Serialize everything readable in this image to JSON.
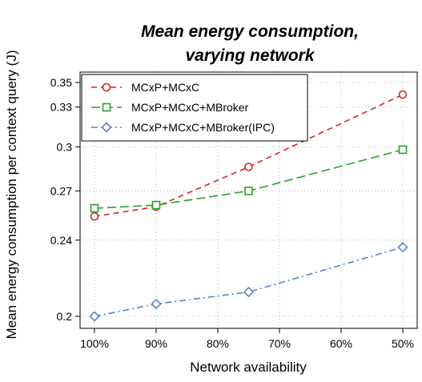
{
  "chart_data": {
    "type": "line",
    "title": "Mean energy consumption, varying network",
    "title_lines": [
      "Mean energy consumption,",
      "varying network"
    ],
    "xlabel": "Network availability",
    "ylabel": "Mean energy consumption per context query (J)",
    "x_ticks": [
      100,
      90,
      80,
      70,
      60,
      50
    ],
    "x_tick_labels": [
      "100%",
      "90%",
      "80%",
      "70%",
      "60%",
      "50%"
    ],
    "xlim": [
      100,
      50
    ],
    "x_reversed": true,
    "y_ticks": [
      0.2,
      0.24,
      0.27,
      0.3,
      0.33,
      0.35
    ],
    "y_tick_labels": [
      "0.2",
      "0.24",
      "0.27",
      "0.3",
      "0.33",
      "0.35"
    ],
    "ylim": [
      0.2,
      0.35
    ],
    "y_scale": "log",
    "grid": true,
    "legend_position": "top-left",
    "series": [
      {
        "name": "MCxP+MCxC",
        "color": "#d62728",
        "line_style": "dashed",
        "marker": "circle",
        "x": [
          100,
          90,
          75,
          50
        ],
        "values": [
          0.254,
          0.26,
          0.286,
          0.34
        ]
      },
      {
        "name": "MCxP+MCxC+MBroker",
        "color": "#2ca02c",
        "line_style": "long-dash",
        "marker": "square",
        "x": [
          100,
          90,
          75,
          50
        ],
        "values": [
          0.259,
          0.261,
          0.27,
          0.298
        ]
      },
      {
        "name": "MCxP+MCxC+MBroker(IPC)",
        "color": "#5b84c4",
        "line_style": "dash-dot",
        "marker": "diamond",
        "x": [
          100,
          90,
          75,
          50
        ],
        "values": [
          0.2,
          0.206,
          0.212,
          0.236
        ]
      }
    ]
  }
}
